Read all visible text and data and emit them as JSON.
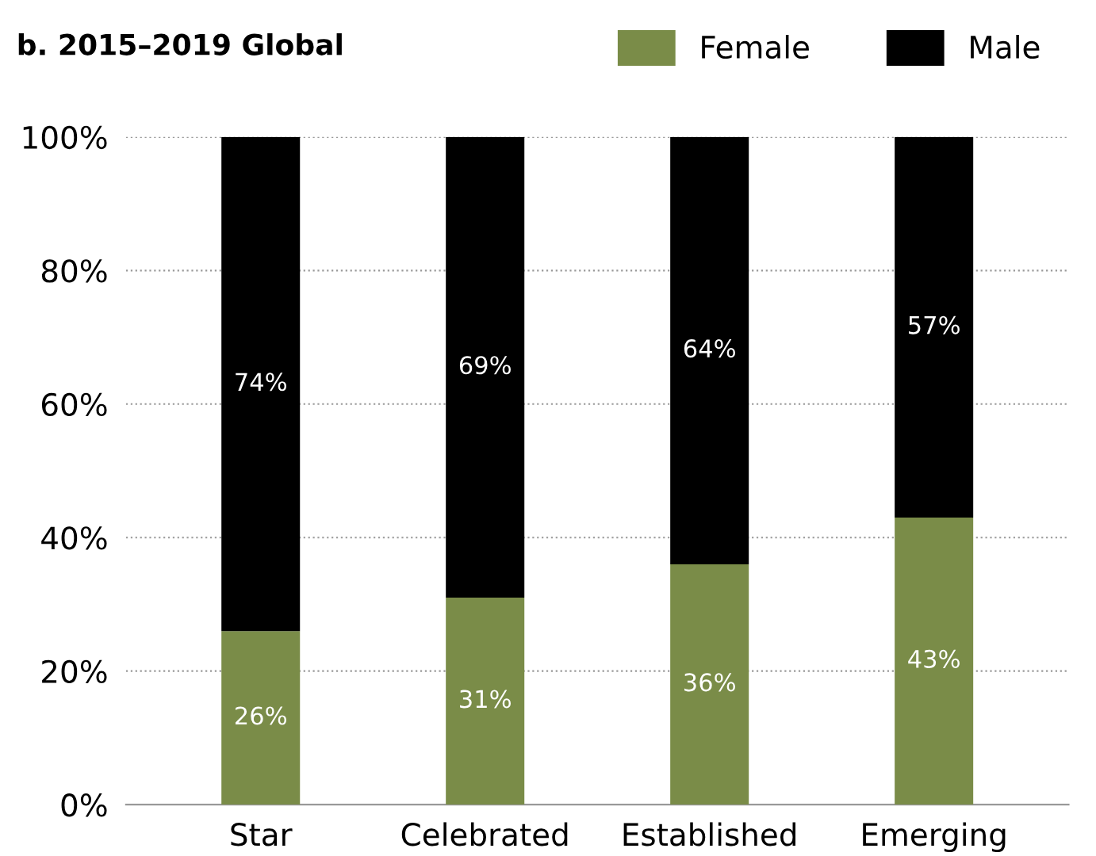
{
  "chart_data": {
    "type": "bar",
    "title": "b. 2015–2019 Global",
    "categories": [
      "Star",
      "Celebrated",
      "Established",
      "Emerging"
    ],
    "stacked": true,
    "series": [
      {
        "name": "Female",
        "color": "#7a8c48",
        "values": [
          26,
          31,
          36,
          43
        ],
        "value_labels": [
          "26%",
          "31%",
          "36%",
          "43%"
        ]
      },
      {
        "name": "Male",
        "color": "#000000",
        "values": [
          74,
          69,
          64,
          57
        ],
        "value_labels": [
          "74%",
          "69%",
          "64%",
          "57%"
        ]
      }
    ],
    "ylim": [
      0,
      100
    ],
    "yticks": [
      {
        "value": 0,
        "label": "0%"
      },
      {
        "value": 20,
        "label": "20%"
      },
      {
        "value": 40,
        "label": "40%"
      },
      {
        "value": 60,
        "label": "60%"
      },
      {
        "value": 80,
        "label": "80%"
      },
      {
        "value": 100,
        "label": "100%"
      }
    ],
    "grid": "y",
    "legend": "top right"
  }
}
